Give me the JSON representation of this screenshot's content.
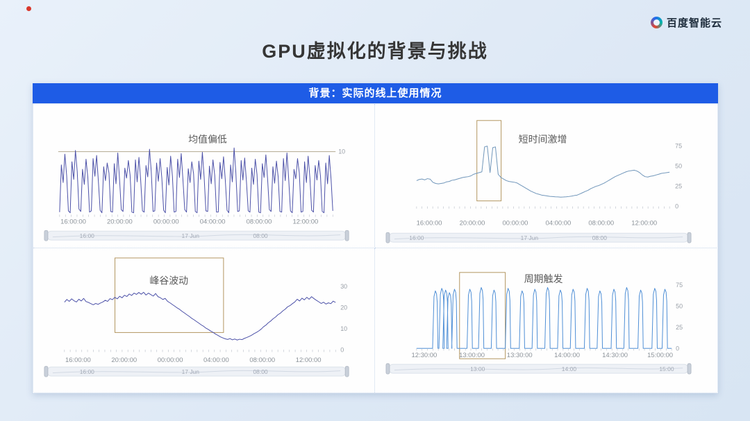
{
  "brand": {
    "name": "百度智能云"
  },
  "header": {
    "title": "GPU虚拟化的背景与挑战"
  },
  "banner": {
    "text": "背景：实际的线上使用情况",
    "bg": "#1e5ce6"
  },
  "colors": {
    "highlight_box": "#b39660",
    "threshold_line": "#b3a98f",
    "tick_text": "#9aa0a8",
    "xlabel_text": "#8b9299",
    "label_text": "#5a5a5a",
    "slider_bg": "#eef1f6",
    "slider_border": "#dce2ea",
    "slider_text": "#a3aab6"
  },
  "chart_data": [
    {
      "type": "line",
      "title": "均值偏低",
      "line_color": "#4c51a8",
      "ylim": [
        0,
        12
      ],
      "threshold": {
        "value": 10,
        "label": "10"
      },
      "y_ticks": [],
      "x_ticks": [
        "16:00:00",
        "20:00:00",
        "00:00:00",
        "04:00:00",
        "08:00:00",
        "12:00:00"
      ],
      "slider": {
        "labels": [
          "16:00",
          "17 Jun",
          "08:00"
        ]
      },
      "values": [
        0.4,
        7.9,
        5.1,
        9.6,
        6.2,
        0.6,
        0.3,
        8.4,
        5.6,
        10.2,
        6.8,
        0.9,
        0.5,
        7.2,
        4.8,
        8.8,
        5.9,
        0.4,
        0.6,
        8.9,
        6.1,
        9.4,
        5.2,
        0.7,
        0.3,
        7.6,
        5.4,
        8.2,
        6.6,
        0.5,
        0.4,
        8.1,
        4.9,
        9.8,
        5.7,
        0.8,
        0.5,
        7.4,
        5.8,
        8.6,
        6.3,
        0.4,
        0.3,
        8.7,
        5.2,
        9.1,
        5.5,
        0.6,
        0.4,
        7.8,
        6.0,
        10.4,
        6.9,
        0.5,
        0.6,
        8.2,
        5.3,
        8.9,
        5.8,
        0.7,
        0.3,
        7.5,
        4.7,
        9.3,
        6.1,
        0.4,
        0.5,
        8.8,
        5.9,
        9.7,
        5.4,
        0.8,
        0.4,
        7.3,
        5.1,
        8.4,
        6.5,
        0.5,
        0.3,
        8.5,
        5.6,
        9.9,
        5.9,
        0.6,
        0.5,
        7.7,
        4.9,
        8.7,
        6.2,
        0.4,
        0.4,
        8.3,
        5.7,
        9.2,
        5.6,
        0.7,
        0.3,
        7.9,
        5.2,
        10.6,
        6.7,
        0.5,
        0.6,
        8.6,
        5.5,
        9.0,
        5.3,
        0.6,
        0.4,
        7.4,
        4.8,
        8.8,
        6.4,
        0.4,
        0.3,
        8.1,
        5.9,
        9.5,
        5.7,
        0.8,
        0.5,
        7.6,
        5.0,
        8.5,
        6.0,
        0.5,
        0.4,
        8.9,
        5.4,
        9.8,
        5.5,
        0.6,
        0.3,
        7.2,
        5.7,
        8.9,
        6.6,
        0.4,
        0.5,
        8.4,
        5.1,
        9.3,
        5.8,
        0.7,
        0.4,
        7.8,
        5.5,
        8.6,
        6.1,
        0.5,
        0.3,
        8.2,
        4.9,
        9.4,
        5.6,
        0.6
      ]
    },
    {
      "type": "line",
      "title": "短时间激增",
      "line_color": "#7096ba",
      "ylim": [
        0,
        82
      ],
      "y_ticks": [
        0,
        25,
        50,
        75
      ],
      "x_ticks": [
        "16:00:00",
        "20:00:00",
        "00:00:00",
        "04:00:00",
        "08:00:00",
        "12:00:00"
      ],
      "slider": {
        "labels": [
          "16:00",
          "17 Jun",
          "08:00"
        ]
      },
      "annotation": {
        "label": "短时间激增"
      },
      "values": [
        32,
        33.5,
        34,
        33,
        34.5,
        33.8,
        30,
        28.5,
        28,
        28.5,
        29,
        30.5,
        31,
        32.5,
        33,
        34,
        35,
        36,
        36.5,
        37,
        38,
        40,
        41,
        42,
        43,
        74,
        75,
        42,
        73,
        74,
        40,
        36,
        34,
        32,
        31,
        30.5,
        30,
        29,
        27,
        25,
        23,
        21,
        19,
        17.5,
        16,
        15,
        14,
        13.5,
        13,
        12.5,
        12.2,
        12,
        11.8,
        11.5,
        11.7,
        12,
        12.3,
        12.8,
        13.5,
        14,
        15.5,
        17,
        18.5,
        20,
        22,
        23.5,
        25,
        26,
        27.5,
        29,
        31,
        33,
        35,
        37,
        38.5,
        40,
        41.5,
        43,
        44,
        44.5,
        45,
        44,
        42,
        39,
        37,
        36.5,
        37.5,
        38,
        39,
        40,
        41,
        41.5,
        42,
        42.5
      ]
    },
    {
      "type": "line",
      "title": "峰谷波动",
      "line_color": "#4c51a8",
      "ylim": [
        0,
        32
      ],
      "y_ticks": [
        0,
        10,
        20,
        30
      ],
      "x_ticks": [
        "16:00:00",
        "20:00:00",
        "00:00:00",
        "04:00:00",
        "08:00:00",
        "12:00:00"
      ],
      "slider": {
        "labels": [
          "16:00",
          "17 Jun",
          "08:00"
        ]
      },
      "annotation": {
        "label": "峰谷波动"
      },
      "values": [
        22.5,
        23.8,
        22.9,
        24.1,
        23.2,
        22.6,
        23.9,
        23.1,
        24.3,
        22.8,
        22.4,
        21.8,
        21.3,
        21.9,
        21.5,
        22.1,
        22.6,
        23.4,
        22.9,
        24.2,
        23.7,
        24.8,
        24.1,
        25.3,
        24.6,
        25.8,
        25.2,
        26.4,
        25.7,
        26.8,
        26.2,
        27.1,
        26.3,
        27.2,
        25.9,
        26.8,
        26.1,
        25.4,
        26.6,
        25.1,
        24.6,
        23.8,
        24.3,
        22.9,
        22.2,
        21.4,
        20.6,
        19.8,
        19.1,
        18.2,
        17.4,
        16.6,
        15.8,
        14.9,
        14.2,
        13.4,
        12.6,
        11.8,
        11.1,
        10.2,
        9.6,
        8.8,
        8.2,
        7.4,
        6.8,
        6.1,
        5.6,
        5.2,
        4.9,
        5.3,
        4.7,
        5.1,
        4.6,
        5.0,
        4.8,
        5.4,
        5.8,
        6.3,
        6.9,
        7.6,
        8.2,
        8.9,
        9.8,
        10.9,
        11.7,
        12.8,
        13.6,
        14.7,
        15.5,
        16.6,
        17.3,
        18.4,
        19.2,
        20.3,
        20.9,
        21.8,
        22.6,
        23.9,
        23.1,
        24.4,
        23.6,
        24.8,
        23.9,
        25.1,
        24.2,
        23.4,
        22.7,
        21.9,
        22.5,
        21.6,
        22.2,
        21.8,
        23.0,
        22.4
      ]
    },
    {
      "type": "line",
      "title": "周期触发",
      "line_color": "#4f8fd6",
      "ylim": [
        0,
        80
      ],
      "y_ticks": [
        0,
        25,
        50,
        75
      ],
      "x_ticks": [
        "12:30:00",
        "13:00:00",
        "13:30:00",
        "14:00:00",
        "14:30:00",
        "15:00:00"
      ],
      "slider": {
        "labels": [
          "13:00",
          "14:00",
          "15:00"
        ]
      },
      "annotation": {
        "label": "周期触发"
      },
      "spikes": [
        {
          "x": 0.075,
          "h": 68
        },
        {
          "x": 0.1,
          "h": 71
        },
        {
          "x": 0.115,
          "h": 69
        },
        {
          "x": 0.13,
          "h": 66
        },
        {
          "x": 0.15,
          "h": 70
        },
        {
          "x": 0.21,
          "h": 70
        },
        {
          "x": 0.255,
          "h": 72
        },
        {
          "x": 0.305,
          "h": 69
        },
        {
          "x": 0.36,
          "h": 71
        },
        {
          "x": 0.415,
          "h": 68
        },
        {
          "x": 0.465,
          "h": 70
        },
        {
          "x": 0.515,
          "h": 72
        },
        {
          "x": 0.565,
          "h": 69
        },
        {
          "x": 0.615,
          "h": 70
        },
        {
          "x": 0.67,
          "h": 71
        },
        {
          "x": 0.72,
          "h": 68
        },
        {
          "x": 0.775,
          "h": 70
        },
        {
          "x": 0.825,
          "h": 72
        },
        {
          "x": 0.88,
          "h": 69
        },
        {
          "x": 0.935,
          "h": 71
        },
        {
          "x": 0.975,
          "h": 70
        }
      ]
    }
  ]
}
